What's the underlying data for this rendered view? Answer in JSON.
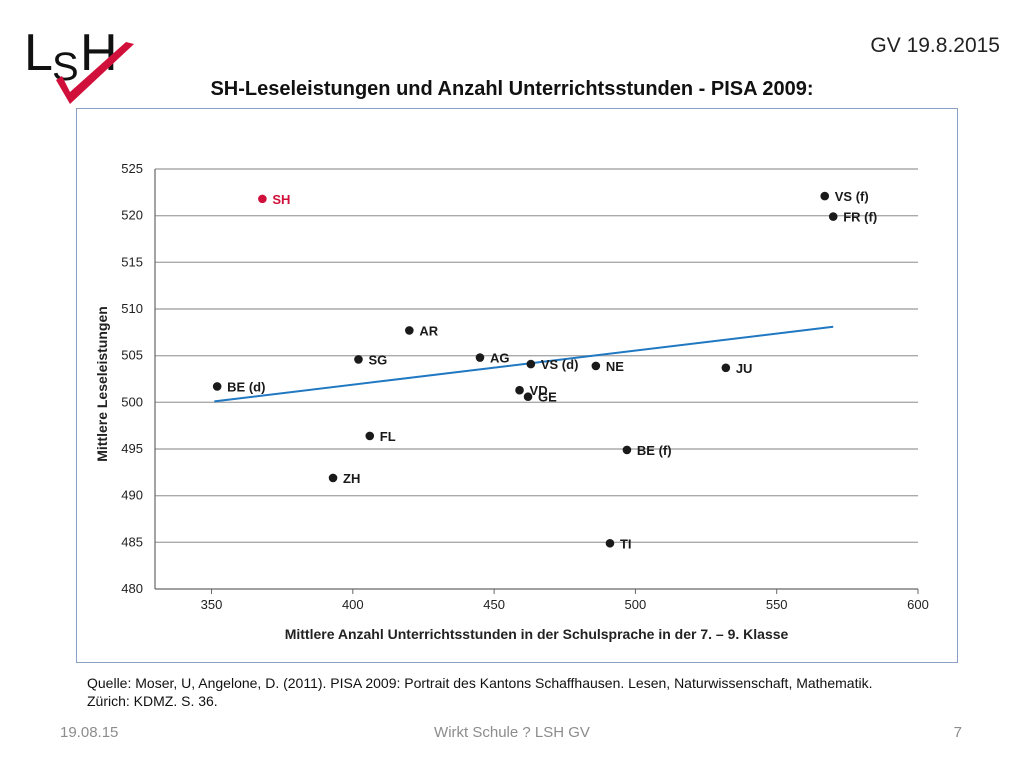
{
  "slide": {
    "date_top": "GV 19.8.2015",
    "title": "SH-Leseleistungen und Anzahl Unterrichtsstunden - PISA 2009:",
    "source_line1": "Quelle: Moser, U, Angelone, D. (2011). PISA 2009: Portrait des Kantons Schaffhausen. Lesen, Naturwissenschaft, Mathematik.",
    "source_line2": "Zürich: KDMZ. S. 36.",
    "footer_left": "19.08.15",
    "footer_center": "Wirkt Schule ? LSH GV",
    "footer_right": "7"
  },
  "logo": {
    "text": "LSH",
    "icon": "check-mark-icon",
    "color": "#d0103a"
  },
  "chart_data": {
    "type": "scatter",
    "xlabel": "Mittlere Anzahl Unterrichtsstunden in der Schulsprache in der 7. – 9. Klasse",
    "ylabel": "Mittlere Leseleistungen",
    "xlim": [
      330,
      600
    ],
    "ylim": [
      480,
      525
    ],
    "xticks": [
      350,
      400,
      450,
      500,
      550,
      600
    ],
    "yticks": [
      480,
      485,
      490,
      495,
      500,
      505,
      510,
      515,
      520,
      525
    ],
    "grid": "horizontal",
    "highlight_color": "#d0103a",
    "point_color": "#1a1a1a",
    "trend_color": "#1f78c1",
    "points": [
      {
        "label": "SH",
        "x": 368,
        "y": 521.8,
        "highlight": true
      },
      {
        "label": "VS (f)",
        "x": 567,
        "y": 522.1
      },
      {
        "label": "FR (f)",
        "x": 570,
        "y": 519.9
      },
      {
        "label": "AR",
        "x": 420,
        "y": 507.7
      },
      {
        "label": "AG",
        "x": 445,
        "y": 504.8
      },
      {
        "label": "VS (d)",
        "x": 463,
        "y": 504.1
      },
      {
        "label": "SG",
        "x": 402,
        "y": 504.6
      },
      {
        "label": "NE",
        "x": 486,
        "y": 503.9
      },
      {
        "label": "JU",
        "x": 532,
        "y": 503.7
      },
      {
        "label": "BE (d)",
        "x": 352,
        "y": 501.7
      },
      {
        "label": "VD",
        "x": 459,
        "y": 501.3
      },
      {
        "label": "GE",
        "x": 462,
        "y": 500.6
      },
      {
        "label": "FL",
        "x": 406,
        "y": 496.4
      },
      {
        "label": "BE (f)",
        "x": 497,
        "y": 494.9
      },
      {
        "label": "ZH",
        "x": 393,
        "y": 491.9
      },
      {
        "label": "TI",
        "x": 491,
        "y": 484.9
      }
    ],
    "trendline": {
      "x": [
        351,
        570
      ],
      "y": [
        500.1,
        508.1
      ]
    }
  }
}
